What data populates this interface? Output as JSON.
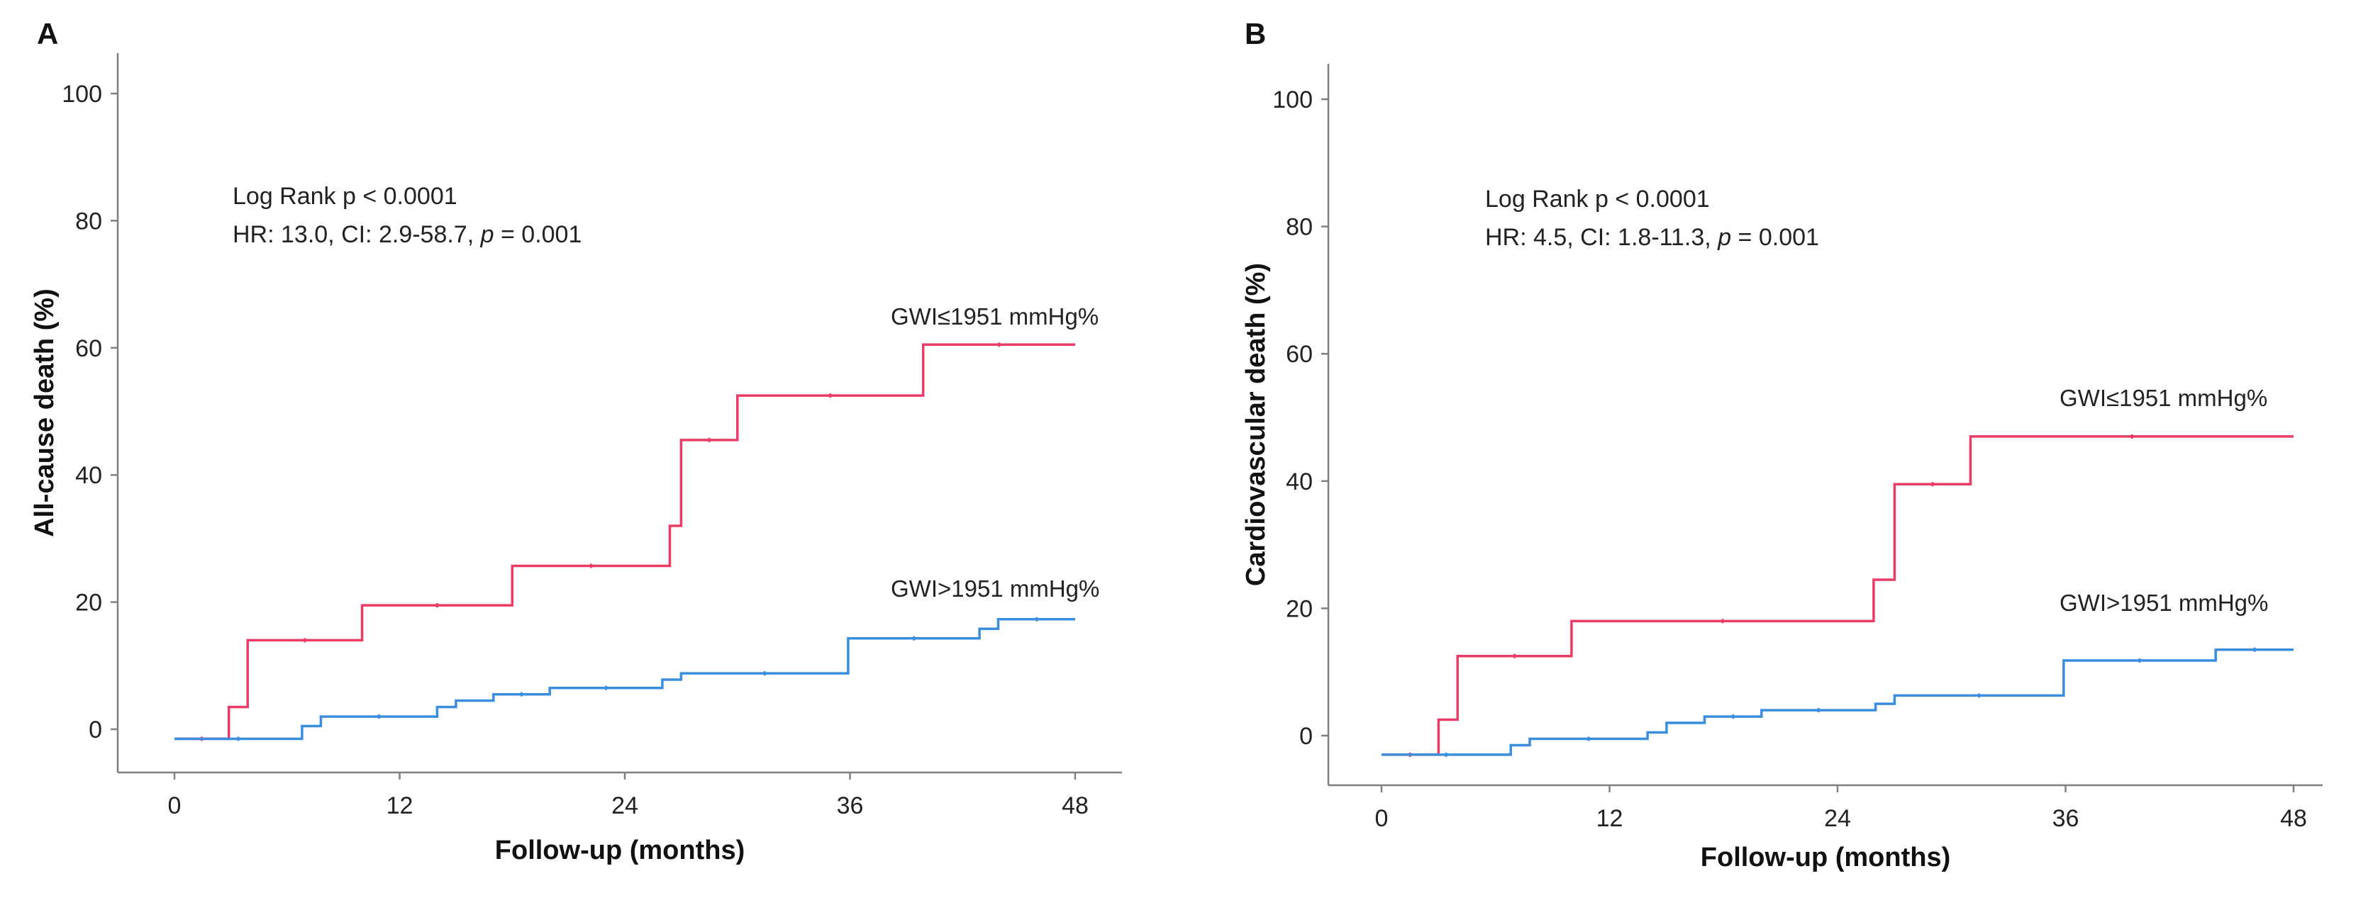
{
  "panels": [
    {
      "panel_label": "A",
      "annotation": {
        "line1": "Log Rank p < 0.0001",
        "line2_prefix": "HR: 13.0, CI: 2.9-58.7, ",
        "line2_p": "p",
        "line2_suffix": " = 0.001"
      }
    },
    {
      "panel_label": "B",
      "annotation": {
        "line1": "Log Rank p < 0.0001",
        "line2_prefix": "HR: 4.5, CI: 1.8-11.3, ",
        "line2_p": "p",
        "line2_suffix": " = 0.001"
      }
    }
  ],
  "colors": {
    "low_gwi": "#ea3c64",
    "high_gwi": "#3a8ee0"
  },
  "chart_data": [
    {
      "type": "line",
      "step": true,
      "xlabel": "Follow-up (months)",
      "ylabel": "All-cause death (%)",
      "xlim": [
        -6,
        52
      ],
      "ylim": [
        -8,
        105
      ],
      "xticks": [
        0,
        12,
        24,
        36,
        48
      ],
      "yticks": [
        0,
        20,
        40,
        60,
        80,
        100
      ],
      "grid": false,
      "series": [
        {
          "name": "GWI≤1951 mmHg%",
          "color": "#ea3c64",
          "points": [
            [
              0,
              -1.5
            ],
            [
              2.9,
              -1.5
            ],
            [
              2.9,
              3.5
            ],
            [
              3.9,
              3.5
            ],
            [
              3.9,
              14
            ],
            [
              10,
              14
            ],
            [
              10,
              19.5
            ],
            [
              18,
              19.5
            ],
            [
              18,
              25.7
            ],
            [
              26.4,
              25.7
            ],
            [
              26.4,
              32
            ],
            [
              27,
              32
            ],
            [
              27,
              45.5
            ],
            [
              30,
              45.5
            ],
            [
              30,
              52.5
            ],
            [
              39.9,
              52.5
            ],
            [
              39.9,
              60.5
            ],
            [
              48,
              60.5
            ]
          ]
        },
        {
          "name": "GWI>1951 mmHg%",
          "color": "#3a8ee0",
          "points": [
            [
              0,
              -1.5
            ],
            [
              6.8,
              -1.5
            ],
            [
              6.8,
              0.5
            ],
            [
              7.8,
              0.5
            ],
            [
              7.8,
              2
            ],
            [
              14,
              2
            ],
            [
              14,
              3.5
            ],
            [
              15,
              3.5
            ],
            [
              15,
              4.5
            ],
            [
              17,
              4.5
            ],
            [
              17,
              5.5
            ],
            [
              20,
              5.5
            ],
            [
              20,
              6.5
            ],
            [
              26,
              6.5
            ],
            [
              26,
              7.8
            ],
            [
              27,
              7.8
            ],
            [
              27,
              8.8
            ],
            [
              35.9,
              8.8
            ],
            [
              35.9,
              14.3
            ],
            [
              42.9,
              14.3
            ],
            [
              42.9,
              15.8
            ],
            [
              43.9,
              15.8
            ],
            [
              43.9,
              17.3
            ],
            [
              48,
              17.3
            ]
          ]
        }
      ]
    },
    {
      "type": "line",
      "step": true,
      "xlabel": "Follow-up (months)",
      "ylabel": "Cardiovascular death (%)",
      "xlim": [
        -6,
        52
      ],
      "ylim": [
        -8,
        105
      ],
      "xticks": [
        0,
        12,
        24,
        36,
        48
      ],
      "yticks": [
        0,
        20,
        40,
        60,
        80,
        100
      ],
      "grid": false,
      "series": [
        {
          "name": "GWI≤1951 mmHg%",
          "color": "#ea3c64",
          "points": [
            [
              0,
              -3
            ],
            [
              3,
              -3
            ],
            [
              3,
              2.5
            ],
            [
              4,
              2.5
            ],
            [
              4,
              12.5
            ],
            [
              10,
              12.5
            ],
            [
              10,
              18
            ],
            [
              25.9,
              18
            ],
            [
              25.9,
              24.5
            ],
            [
              27,
              24.5
            ],
            [
              27,
              39.5
            ],
            [
              31,
              39.5
            ],
            [
              31,
              47
            ],
            [
              48,
              47
            ]
          ]
        },
        {
          "name": "GWI>1951 mmHg%",
          "color": "#3a8ee0",
          "points": [
            [
              0,
              -3
            ],
            [
              6.8,
              -3
            ],
            [
              6.8,
              -1.5
            ],
            [
              7.8,
              -1.5
            ],
            [
              7.8,
              -0.5
            ],
            [
              14,
              -0.5
            ],
            [
              14,
              0.5
            ],
            [
              15,
              0.5
            ],
            [
              15,
              2
            ],
            [
              17,
              2
            ],
            [
              17,
              3
            ],
            [
              20,
              3
            ],
            [
              20,
              4
            ],
            [
              26,
              4
            ],
            [
              26,
              5
            ],
            [
              27,
              5
            ],
            [
              27,
              6.3
            ],
            [
              35.9,
              6.3
            ],
            [
              35.9,
              11.8
            ],
            [
              43.9,
              11.8
            ],
            [
              43.9,
              13.5
            ],
            [
              48,
              13.5
            ]
          ]
        }
      ]
    }
  ]
}
